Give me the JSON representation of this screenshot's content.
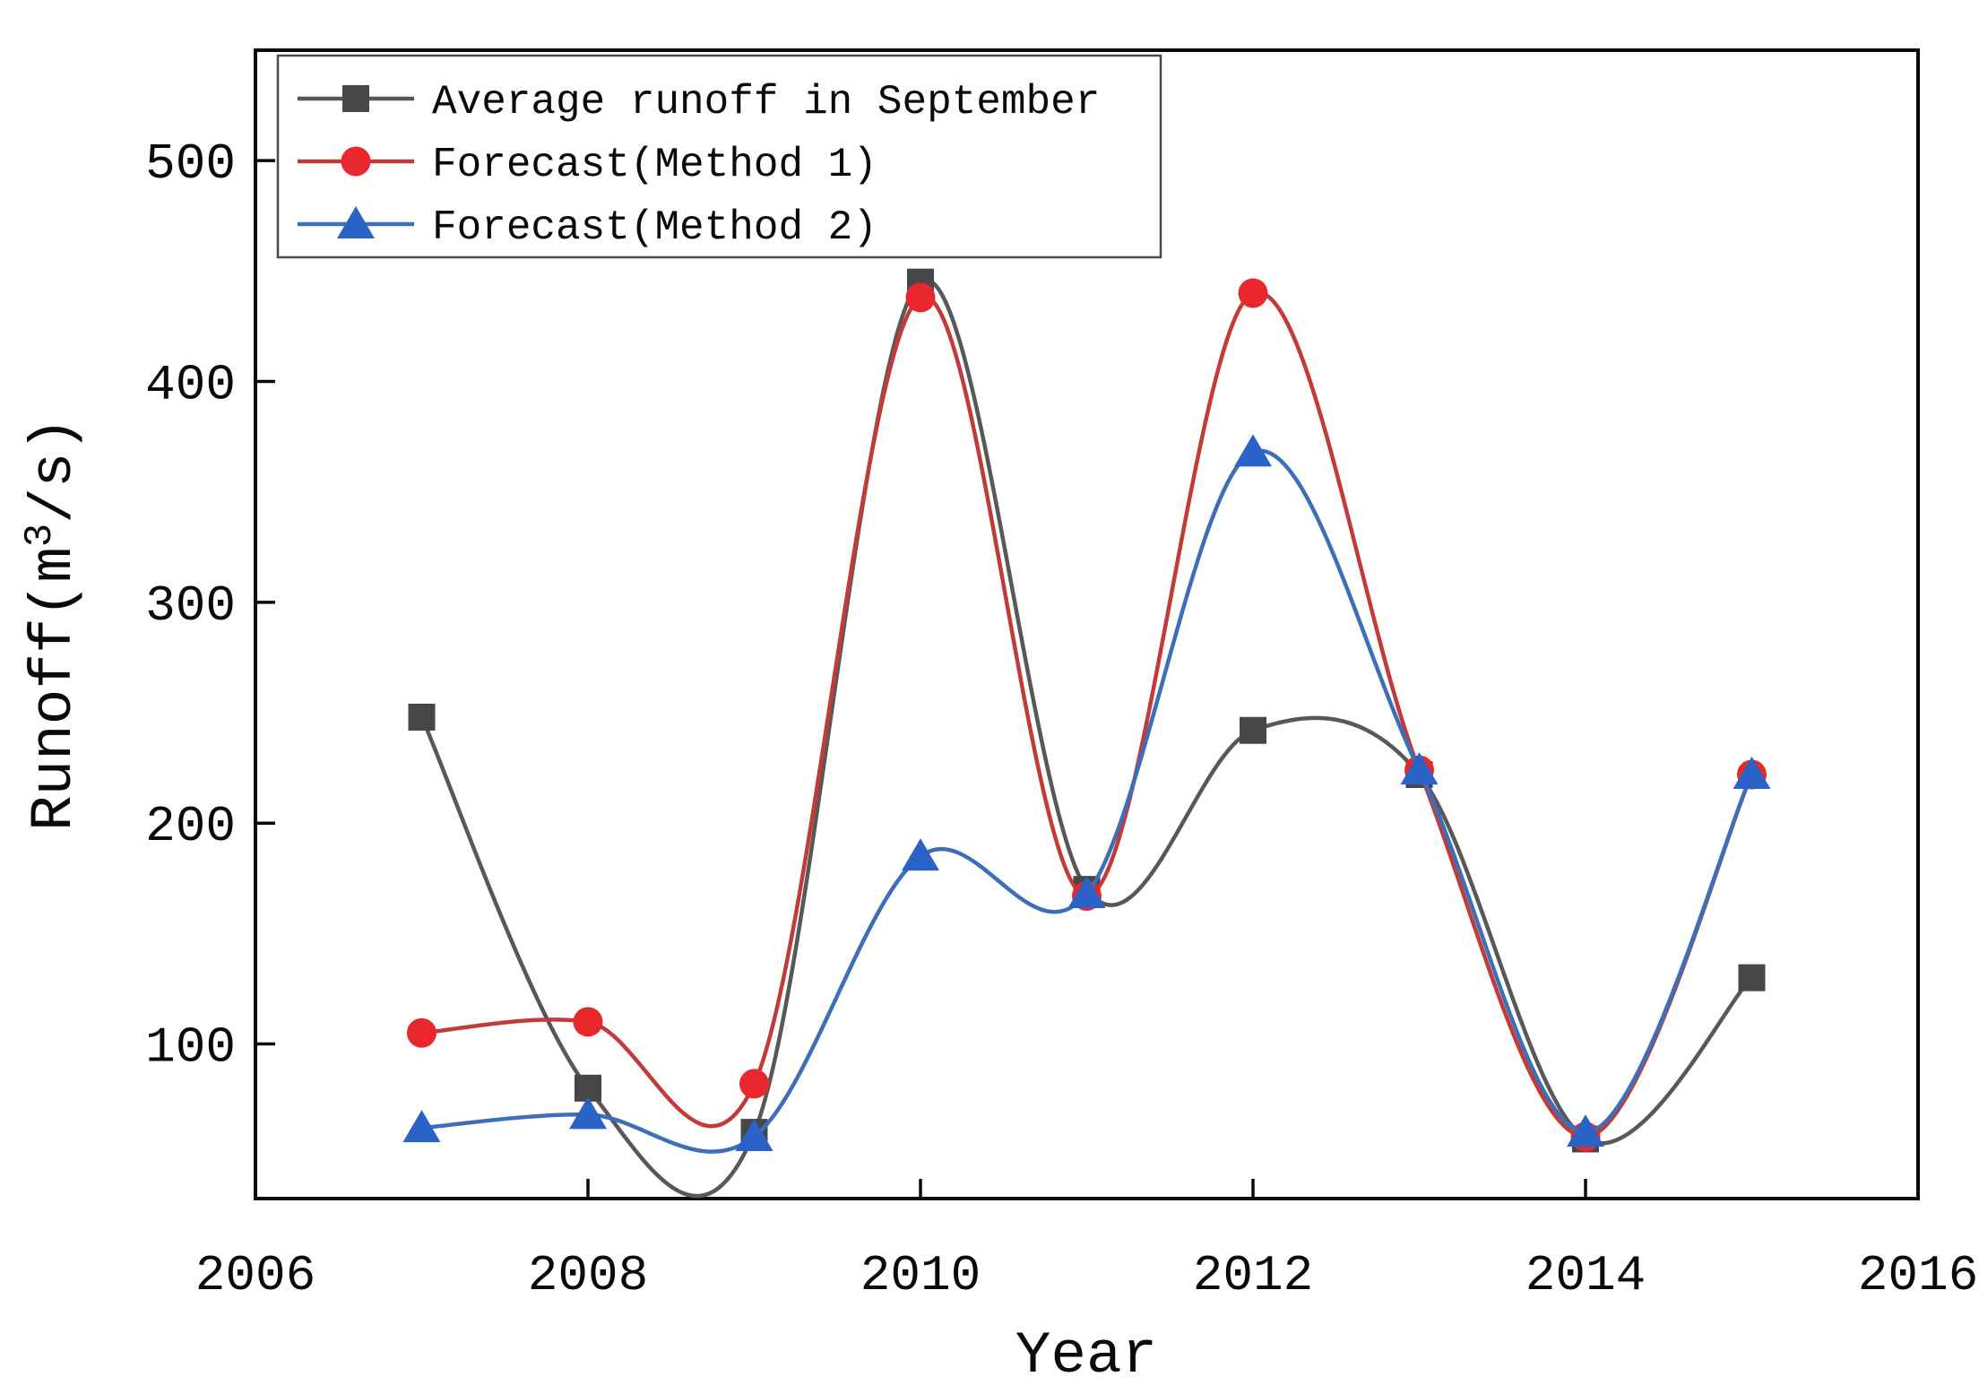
{
  "figure": {
    "background": "#ffffff",
    "axis_color": "#0a0a0a"
  },
  "chart_data": {
    "type": "line",
    "title": "",
    "xlabel": "Year",
    "ylabel": "Runoff(m³/s)",
    "ylabel_parts": {
      "prefix": "Runoff(m",
      "sup": "3",
      "suffix": "/s)"
    },
    "x": [
      2007,
      2008,
      2009,
      2010,
      2011,
      2012,
      2013,
      2014,
      2015
    ],
    "xlim": [
      2006,
      2016
    ],
    "ylim": [
      30,
      550
    ],
    "x_ticks": [
      2006,
      2008,
      2010,
      2012,
      2014,
      2016
    ],
    "y_ticks": [
      100,
      200,
      300,
      400,
      500
    ],
    "grid": false,
    "legend_position": "upper-left",
    "series": [
      {
        "name": "Average runoff in September",
        "marker": "square",
        "marker_color": "#474747",
        "line_color": "#585858",
        "values": [
          248,
          80,
          60,
          445,
          170,
          242,
          222,
          57,
          130
        ]
      },
      {
        "name": "Forecast(Method 1)",
        "marker": "circle",
        "marker_color": "#e8282d",
        "line_color": "#c23b39",
        "values": [
          105,
          110,
          82,
          438,
          167,
          440,
          224,
          58,
          222
        ]
      },
      {
        "name": "Forecast(Method 2)",
        "marker": "triangle",
        "marker_color": "#2a62c8",
        "line_color": "#3d6fb8",
        "values": [
          62,
          68,
          58,
          185,
          168,
          368,
          224,
          60,
          222
        ]
      }
    ]
  }
}
